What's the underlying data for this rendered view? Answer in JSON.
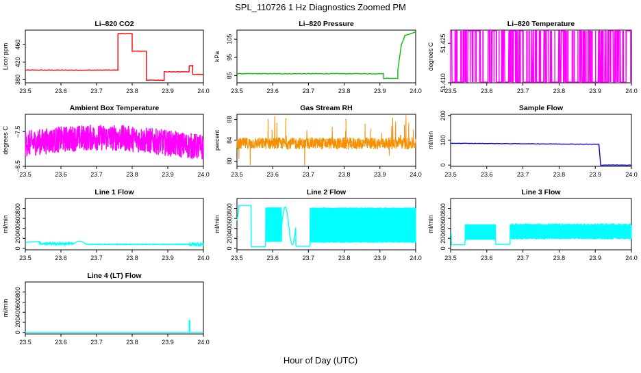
{
  "figure": {
    "title": "SPL_110726  1 Hz Diagnostics Zoomed PM",
    "xlabel": "Hour of Day (UTC)"
  },
  "chart_data": [
    {
      "type": "line",
      "title": "Li–820 CO2",
      "ylabel": "Licor ppm",
      "color": "#ff0000",
      "xlim": [
        23.5,
        24.0
      ],
      "ylim": [
        373,
        493
      ],
      "xticks": [
        "23.5",
        "23.6",
        "23.7",
        "23.8",
        "23.9",
        "24.0"
      ],
      "yticks": [
        "380",
        "420",
        "460"
      ],
      "pattern": "step",
      "x": [
        23.5,
        23.76,
        23.76,
        23.8,
        23.8,
        23.84,
        23.84,
        23.89,
        23.89,
        23.96,
        23.96,
        23.97,
        23.97,
        24.0
      ],
      "y": [
        402,
        402,
        485,
        485,
        445,
        445,
        379,
        379,
        398,
        398,
        412,
        412,
        392,
        392
      ],
      "noise": 1.2
    },
    {
      "type": "line",
      "title": "Li–820 Pressure",
      "ylabel": "kPa",
      "color": "#00c000",
      "xlim": [
        23.5,
        24.0
      ],
      "ylim": [
        81,
        110
      ],
      "xticks": [
        "23.5",
        "23.6",
        "23.7",
        "23.8",
        "23.9",
        "24.0"
      ],
      "yticks": [
        "85",
        "95",
        "105"
      ],
      "pattern": "step",
      "x": [
        23.5,
        23.91,
        23.91,
        23.95,
        23.95,
        23.96,
        23.97,
        24.0
      ],
      "y": [
        86,
        86,
        83.5,
        83.5,
        88,
        102,
        107,
        109
      ],
      "noise": 0.3
    },
    {
      "type": "line",
      "title": "Li–820 Temperature",
      "ylabel": "degrees C",
      "color": "#ff00ff",
      "xlim": [
        23.5,
        24.0
      ],
      "ylim": [
        51.41,
        51.43
      ],
      "xticks": [
        "23.5",
        "23.6",
        "23.7",
        "23.8",
        "23.9",
        "24.0"
      ],
      "yticks": [
        "51.410",
        "51.425"
      ],
      "pattern": "binary",
      "low": 51.41,
      "high": 51.43,
      "p": 0.16
    },
    {
      "type": "line",
      "title": "Ambient Box Temperature",
      "ylabel": "degrees C",
      "color": "#ff00ff",
      "xlim": [
        23.5,
        24.0
      ],
      "ylim": [
        -8.5,
        -7.0
      ],
      "xticks": [
        "23.5",
        "23.6",
        "23.7",
        "23.8",
        "23.9",
        "24.0"
      ],
      "yticks": [
        "−8.5",
        "−7.5"
      ],
      "pattern": "noise",
      "center": -7.85,
      "amp": 0.38,
      "trend": 0.18
    },
    {
      "type": "line",
      "title": "Gas Stream RH",
      "ylabel": "percent",
      "color": "#ff8c00",
      "color2": "#c8a800",
      "xlim": [
        23.5,
        24.0
      ],
      "ylim": [
        79,
        89
      ],
      "xticks": [
        "23.5",
        "23.6",
        "23.7",
        "23.8",
        "23.9",
        "24.0"
      ],
      "yticks": [
        "80",
        "84",
        "88"
      ],
      "pattern": "dense",
      "center": 83.4,
      "amp": 1.1,
      "spikes": true
    },
    {
      "type": "line",
      "title": "Sample Flow",
      "ylabel": "ml/min",
      "color": "#0000cc",
      "xlim": [
        23.5,
        24.0
      ],
      "ylim": [
        -5,
        205
      ],
      "xticks": [
        "23.5",
        "23.6",
        "23.7",
        "23.8",
        "23.9",
        "24.0"
      ],
      "yticks": [
        "0",
        "100",
        "200"
      ],
      "pattern": "step",
      "x": [
        23.5,
        23.91,
        23.915,
        23.92,
        24.0
      ],
      "y": [
        88,
        84,
        0,
        0,
        0
      ],
      "noise": 1.5
    },
    {
      "type": "line",
      "title": "Line 1 Flow",
      "ylabel": "ml/min",
      "color": "#00ffff",
      "xlim": [
        23.5,
        24.0
      ],
      "ylim": [
        -30,
        1000
      ],
      "xticks": [
        "23.5",
        "23.6",
        "23.7",
        "23.8",
        "23.9",
        "24.0"
      ],
      "yticks": [
        "0",
        "200",
        "400",
        "600",
        "800"
      ],
      "pattern": "line1"
    },
    {
      "type": "line",
      "title": "Line 2 Flow",
      "ylabel": "ml/min",
      "color": "#00ffff",
      "xlim": [
        23.5,
        24.0
      ],
      "ylim": [
        -30,
        1000
      ],
      "xticks": [
        "23.5",
        "23.6",
        "23.7",
        "23.8",
        "23.9",
        "24.0"
      ],
      "yticks": [
        "0",
        "200",
        "400",
        "600",
        "800"
      ],
      "pattern": "line2"
    },
    {
      "type": "line",
      "title": "Line 3 Flow",
      "ylabel": "ml/min",
      "color": "#00ffff",
      "xlim": [
        23.5,
        24.0
      ],
      "ylim": [
        -30,
        1000
      ],
      "xticks": [
        "23.5",
        "23.6",
        "23.7",
        "23.8",
        "23.9",
        "24.0"
      ],
      "yticks": [
        "0",
        "200",
        "400",
        "600",
        "800"
      ],
      "pattern": "line3"
    },
    {
      "type": "line",
      "title": "Line 4 (LT) Flow",
      "ylabel": "ml/min",
      "color": "#00ffff",
      "xlim": [
        23.5,
        24.0
      ],
      "ylim": [
        -30,
        1000
      ],
      "xticks": [
        "23.5",
        "23.6",
        "23.7",
        "23.8",
        "23.9",
        "24.0"
      ],
      "yticks": [
        "0",
        "200",
        "400",
        "600",
        "800"
      ],
      "pattern": "step",
      "x": [
        23.5,
        23.96,
        23.96,
        23.962,
        23.962,
        24.0
      ],
      "y": [
        2,
        2,
        240,
        240,
        2,
        2
      ],
      "noise": 0
    }
  ]
}
